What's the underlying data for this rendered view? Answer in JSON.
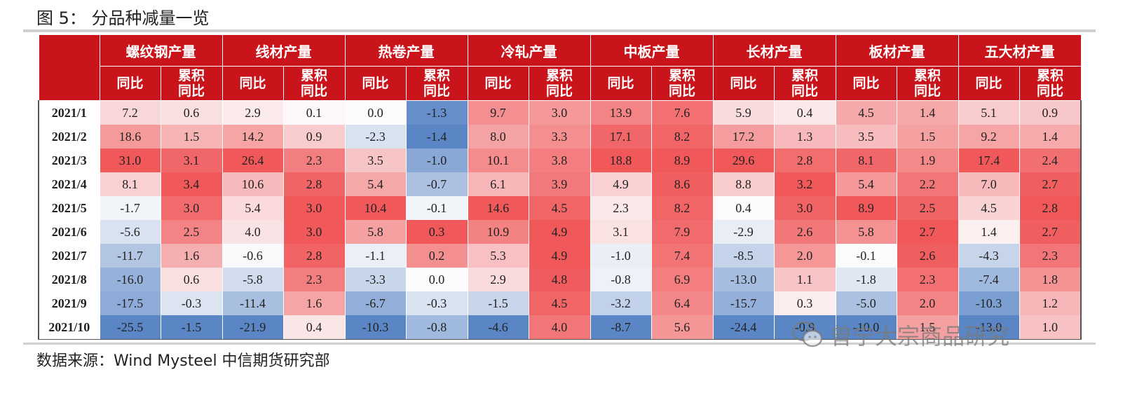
{
  "title": "图 5：  分品种减量一览",
  "source": "数据来源：Wind Mysteel 中信期货研究部",
  "watermark": "曾宁大宗商品研究",
  "sub_labels": {
    "yoy": "同比",
    "cum": "累积\n同比"
  },
  "groups": [
    "螺纹钢产量",
    "线材产量",
    "热卷产量",
    "冷轧产量",
    "中板产量",
    "长材产量",
    "板材产量",
    "五大材产量"
  ],
  "rows": [
    {
      "date": "2021/1",
      "values": [
        [
          7.2,
          0.6
        ],
        [
          2.9,
          0.1
        ],
        [
          0.0,
          -1.3
        ],
        [
          9.7,
          3.0
        ],
        [
          13.9,
          7.6
        ],
        [
          5.9,
          0.4
        ],
        [
          4.5,
          1.4
        ],
        [
          5.1,
          0.9
        ]
      ]
    },
    {
      "date": "2021/2",
      "values": [
        [
          18.6,
          1.5
        ],
        [
          14.2,
          0.9
        ],
        [
          -2.3,
          -1.4
        ],
        [
          8.0,
          3.3
        ],
        [
          17.1,
          8.2
        ],
        [
          17.2,
          1.3
        ],
        [
          3.5,
          1.5
        ],
        [
          9.2,
          1.4
        ]
      ]
    },
    {
      "date": "2021/3",
      "values": [
        [
          31.0,
          3.1
        ],
        [
          26.4,
          2.3
        ],
        [
          3.5,
          -1.0
        ],
        [
          10.1,
          3.8
        ],
        [
          18.8,
          8.9
        ],
        [
          29.6,
          2.8
        ],
        [
          8.1,
          1.9
        ],
        [
          17.4,
          2.4
        ]
      ]
    },
    {
      "date": "2021/4",
      "values": [
        [
          8.1,
          3.4
        ],
        [
          10.6,
          2.8
        ],
        [
          5.4,
          -0.7
        ],
        [
          6.1,
          3.9
        ],
        [
          4.9,
          8.6
        ],
        [
          8.8,
          3.2
        ],
        [
          5.4,
          2.2
        ],
        [
          7.0,
          2.7
        ]
      ]
    },
    {
      "date": "2021/5",
      "values": [
        [
          -1.7,
          3.0
        ],
        [
          5.4,
          3.0
        ],
        [
          10.4,
          -0.1
        ],
        [
          14.6,
          4.5
        ],
        [
          2.3,
          8.2
        ],
        [
          0.4,
          3.0
        ],
        [
          8.9,
          2.5
        ],
        [
          4.5,
          2.8
        ]
      ]
    },
    {
      "date": "2021/6",
      "values": [
        [
          -5.6,
          2.5
        ],
        [
          4.0,
          3.0
        ],
        [
          5.8,
          0.3
        ],
        [
          10.9,
          4.9
        ],
        [
          3.1,
          7.9
        ],
        [
          -2.9,
          2.6
        ],
        [
          5.8,
          2.7
        ],
        [
          1.4,
          2.7
        ]
      ]
    },
    {
      "date": "2021/7",
      "values": [
        [
          -11.7,
          1.6
        ],
        [
          -0.6,
          2.8
        ],
        [
          -1.1,
          0.2
        ],
        [
          5.3,
          4.9
        ],
        [
          -1.0,
          7.4
        ],
        [
          -8.5,
          2.0
        ],
        [
          -0.1,
          2.6
        ],
        [
          -4.3,
          2.3
        ]
      ]
    },
    {
      "date": "2021/8",
      "values": [
        [
          -16.0,
          0.6
        ],
        [
          -5.8,
          2.3
        ],
        [
          -3.3,
          0.0
        ],
        [
          2.9,
          4.8
        ],
        [
          -0.8,
          6.9
        ],
        [
          -13.0,
          1.1
        ],
        [
          -1.8,
          2.3
        ],
        [
          -7.4,
          1.8
        ]
      ]
    },
    {
      "date": "2021/9",
      "values": [
        [
          -17.5,
          -0.3
        ],
        [
          -11.4,
          1.6
        ],
        [
          -6.7,
          -0.3
        ],
        [
          -1.5,
          4.5
        ],
        [
          -3.2,
          6.4
        ],
        [
          -15.7,
          0.3
        ],
        [
          -5.0,
          2.0
        ],
        [
          -10.3,
          1.2
        ]
      ]
    },
    {
      "date": "2021/10",
      "values": [
        [
          -25.5,
          -1.5
        ],
        [
          -21.9,
          0.4
        ],
        [
          -10.3,
          -0.8
        ],
        [
          -4.6,
          4.0
        ],
        [
          -8.7,
          5.6
        ],
        [
          -24.4,
          -0.9
        ],
        [
          -10.0,
          1.5
        ],
        [
          -13.0,
          1.0
        ]
      ]
    }
  ],
  "colors": {
    "header_bg": "#c8141a",
    "pos": "#f0585a",
    "neg": "#5b86c6"
  }
}
